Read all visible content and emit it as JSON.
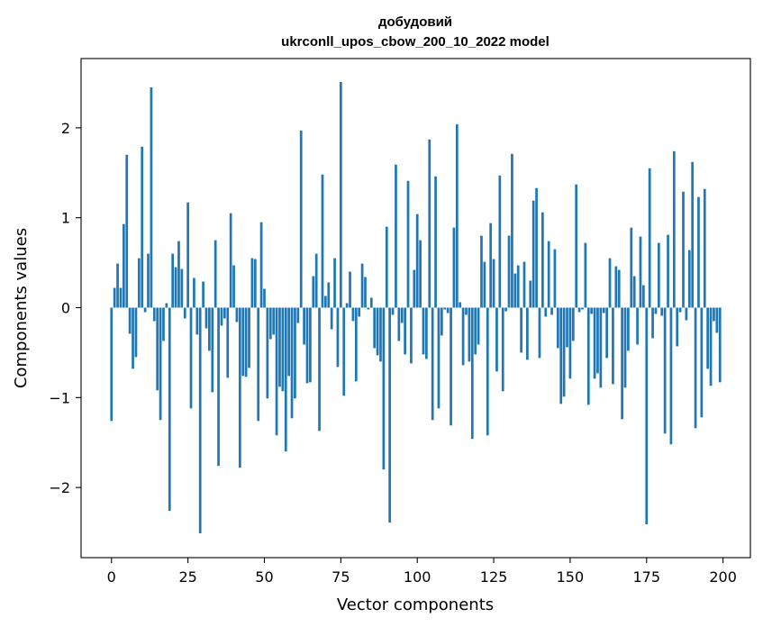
{
  "chart_data": {
    "type": "bar",
    "title": "добудовий",
    "subtitle": "ukrconll_upos_cbow_200_10_2022 model",
    "xlabel": "Vector components",
    "ylabel": "Components values",
    "xlim": [
      -9.95,
      208.95
    ],
    "ylim": [
      -2.78,
      2.77
    ],
    "xticks": [
      0,
      25,
      50,
      75,
      100,
      125,
      150,
      175,
      200
    ],
    "yticks": [
      -2,
      -1,
      0,
      1,
      2
    ],
    "xtick_labels": [
      "0",
      "25",
      "50",
      "75",
      "100",
      "125",
      "150",
      "175",
      "200"
    ],
    "ytick_labels": [
      "−2",
      "−1",
      "0",
      "1",
      "2"
    ],
    "bar_color": "#1f77b4",
    "grid": false,
    "x": [
      0,
      1,
      2,
      3,
      4,
      5,
      6,
      7,
      8,
      9,
      10,
      11,
      12,
      13,
      14,
      15,
      16,
      17,
      18,
      19,
      20,
      21,
      22,
      23,
      24,
      25,
      26,
      27,
      28,
      29,
      30,
      31,
      32,
      33,
      34,
      35,
      36,
      37,
      38,
      39,
      40,
      41,
      42,
      43,
      44,
      45,
      46,
      47,
      48,
      49,
      50,
      51,
      52,
      53,
      54,
      55,
      56,
      57,
      58,
      59,
      60,
      61,
      62,
      63,
      64,
      65,
      66,
      67,
      68,
      69,
      70,
      71,
      72,
      73,
      74,
      75,
      76,
      77,
      78,
      79,
      80,
      81,
      82,
      83,
      84,
      85,
      86,
      87,
      88,
      89,
      90,
      91,
      92,
      93,
      94,
      95,
      96,
      97,
      98,
      99,
      100,
      101,
      102,
      103,
      104,
      105,
      106,
      107,
      108,
      109,
      110,
      111,
      112,
      113,
      114,
      115,
      116,
      117,
      118,
      119,
      120,
      121,
      122,
      123,
      124,
      125,
      126,
      127,
      128,
      129,
      130,
      131,
      132,
      133,
      134,
      135,
      136,
      137,
      138,
      139,
      140,
      141,
      142,
      143,
      144,
      145,
      146,
      147,
      148,
      149,
      150,
      151,
      152,
      153,
      154,
      155,
      156,
      157,
      158,
      159,
      160,
      161,
      162,
      163,
      164,
      165,
      166,
      167,
      168,
      169,
      170,
      171,
      172,
      173,
      174,
      175,
      176,
      177,
      178,
      179,
      180,
      181,
      182,
      183,
      184,
      185,
      186,
      187,
      188,
      189,
      190,
      191,
      192,
      193,
      194,
      195,
      196,
      197,
      198,
      199
    ],
    "values": [
      -1.26,
      0.22,
      0.49,
      0.22,
      0.93,
      1.7,
      -0.29,
      -0.68,
      -0.55,
      0.55,
      1.79,
      -0.05,
      0.6,
      2.45,
      -0.15,
      -0.92,
      -1.25,
      -0.37,
      0.05,
      -2.26,
      0.6,
      0.45,
      0.74,
      0.43,
      -0.12,
      1.17,
      -1.12,
      0.33,
      -0.3,
      -2.51,
      0.29,
      -0.23,
      -0.48,
      -0.94,
      0.75,
      -1.76,
      -0.2,
      -0.12,
      -0.78,
      1.05,
      0.47,
      -0.16,
      -1.78,
      -0.76,
      -0.77,
      -0.67,
      0.55,
      0.54,
      -1.26,
      0.95,
      0.21,
      -1.01,
      -0.35,
      -0.3,
      -1.42,
      -0.88,
      -0.93,
      -1.6,
      -0.76,
      -1.23,
      -1.01,
      -0.17,
      1.97,
      -0.41,
      -0.84,
      -0.83,
      0.35,
      0.6,
      -1.37,
      1.48,
      0.13,
      0.28,
      -0.24,
      0.55,
      -0.66,
      2.51,
      -0.98,
      0.05,
      0.4,
      -0.15,
      -0.82,
      -0.1,
      0.49,
      0.34,
      -0.02,
      0.11,
      -0.45,
      -0.53,
      -0.6,
      -1.8,
      0.9,
      -2.39,
      -0.08,
      1.59,
      -0.37,
      -0.17,
      -0.52,
      1.41,
      -0.62,
      0.42,
      1.04,
      0.75,
      -0.52,
      -0.57,
      1.87,
      -1.25,
      1.46,
      -1.12,
      -0.31,
      -0.02,
      -0.06,
      -1.31,
      0.89,
      2.04,
      0.06,
      -0.64,
      -0.08,
      -0.6,
      -1.46,
      -0.52,
      -0.41,
      0.8,
      0.51,
      -1.42,
      0.94,
      0.54,
      -0.71,
      1.47,
      -0.93,
      -0.04,
      0.8,
      1.71,
      0.38,
      0.47,
      -0.5,
      0.51,
      -0.58,
      0.3,
      1.19,
      1.33,
      -0.56,
      1.06,
      -0.1,
      0.74,
      -0.08,
      0.65,
      -0.45,
      -1.07,
      -0.99,
      -0.44,
      -0.79,
      -0.37,
      1.37,
      -0.05,
      -0.02,
      0.72,
      -1.08,
      -0.07,
      -0.79,
      -0.73,
      -0.89,
      -0.06,
      -0.56,
      0.55,
      -0.85,
      0.46,
      0.42,
      -1.24,
      -0.89,
      -0.48,
      0.89,
      0.35,
      -0.41,
      0.79,
      0.25,
      -2.41,
      1.55,
      -0.34,
      -0.07,
      0.72,
      -0.09,
      -1.4,
      0.81,
      -1.52,
      1.74,
      -0.43,
      -0.05,
      1.29,
      -0.14,
      0.64,
      1.62,
      -1.34,
      1.23,
      -1.22,
      1.32,
      -0.68,
      -0.87,
      -0.15,
      -0.28,
      -0.83
    ]
  }
}
